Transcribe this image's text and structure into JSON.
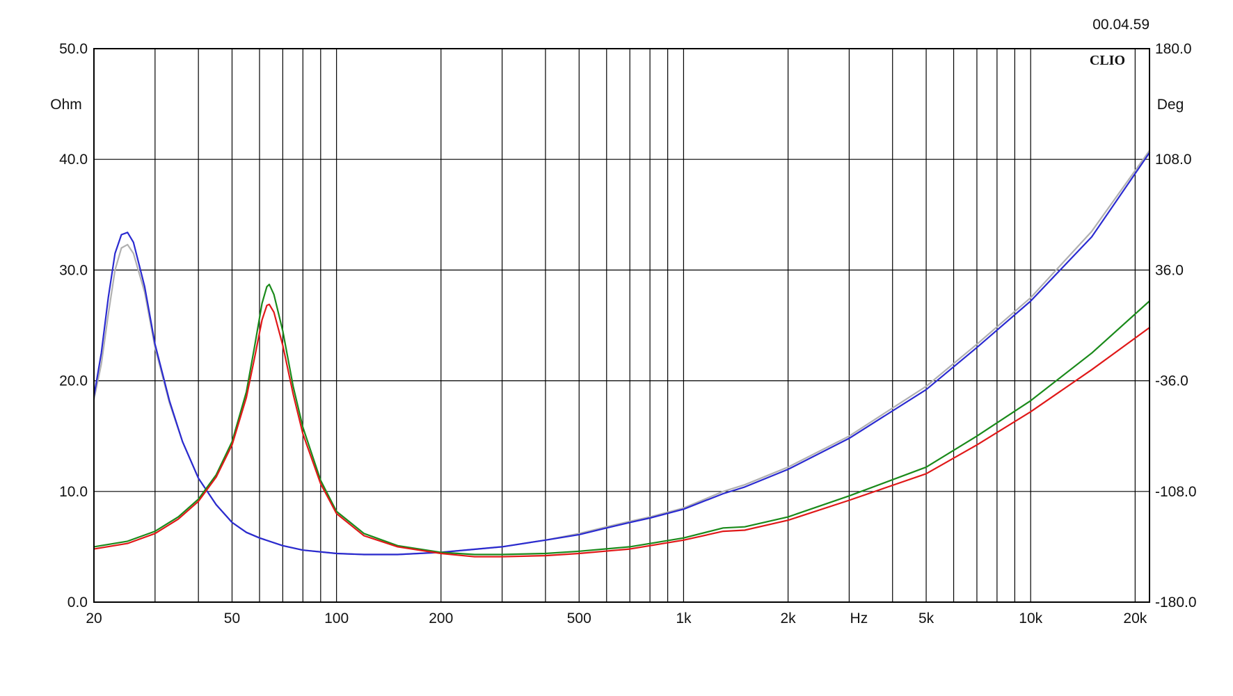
{
  "chart_data": {
    "type": "line",
    "timestamp": "00.04.59",
    "brand": "CLIO",
    "x_axis": {
      "scale": "log",
      "range": [
        20,
        22000
      ],
      "unit_label": "Hz",
      "tick_labels": [
        {
          "value": 20,
          "text": "20"
        },
        {
          "value": 50,
          "text": "50"
        },
        {
          "value": 100,
          "text": "100"
        },
        {
          "value": 200,
          "text": "200"
        },
        {
          "value": 500,
          "text": "500"
        },
        {
          "value": 1000,
          "text": "1k"
        },
        {
          "value": 2000,
          "text": "2k"
        },
        {
          "value": 5000,
          "text": "5k"
        },
        {
          "value": 10000,
          "text": "10k"
        },
        {
          "value": 20000,
          "text": "20k"
        }
      ],
      "unit_position": 3200
    },
    "y_left": {
      "label": "Ohm",
      "range": [
        0,
        50
      ],
      "ticks": [
        "0.0",
        "10.0",
        "20.0",
        "30.0",
        "40.0",
        "50.0"
      ]
    },
    "y_right": {
      "label": "Deg",
      "range": [
        -180,
        180
      ],
      "ticks": [
        "-180.0",
        "-108.0",
        "-36.0",
        "36.0",
        "108.0",
        "180.0"
      ]
    },
    "grid": true,
    "series": [
      {
        "color": "#b0b0b0",
        "points": [
          [
            20,
            18.3
          ],
          [
            21,
            21.5
          ],
          [
            22,
            26
          ],
          [
            23,
            30
          ],
          [
            24,
            32
          ],
          [
            25,
            32.3
          ],
          [
            26,
            31.5
          ],
          [
            28,
            28
          ],
          [
            30,
            23
          ],
          [
            33,
            18
          ],
          [
            36,
            14.5
          ],
          [
            40,
            11.2
          ],
          [
            45,
            8.8
          ],
          [
            50,
            7.2
          ],
          [
            55,
            6.3
          ],
          [
            60,
            5.8
          ],
          [
            70,
            5.1
          ],
          [
            80,
            4.7
          ],
          [
            100,
            4.4
          ],
          [
            120,
            4.3
          ],
          [
            150,
            4.3
          ],
          [
            200,
            4.5
          ],
          [
            300,
            5.0
          ],
          [
            400,
            5.6
          ],
          [
            500,
            6.2
          ],
          [
            600,
            6.8
          ],
          [
            700,
            7.3
          ],
          [
            800,
            7.7
          ],
          [
            1000,
            8.5
          ],
          [
            1300,
            10.0
          ],
          [
            1500,
            10.6
          ],
          [
            2000,
            12.2
          ],
          [
            3000,
            15.0
          ],
          [
            5000,
            19.5
          ],
          [
            7000,
            23.3
          ],
          [
            10000,
            27.5
          ],
          [
            15000,
            33.5
          ],
          [
            22000,
            40.8
          ]
        ]
      },
      {
        "color": "#2a2ad0",
        "points": [
          [
            20,
            18.6
          ],
          [
            21,
            22.5
          ],
          [
            22,
            27.5
          ],
          [
            23,
            31.5
          ],
          [
            24,
            33.2
          ],
          [
            25,
            33.4
          ],
          [
            26,
            32.5
          ],
          [
            28,
            28.5
          ],
          [
            30,
            23.3
          ],
          [
            33,
            18.2
          ],
          [
            36,
            14.5
          ],
          [
            40,
            11.2
          ],
          [
            45,
            8.8
          ],
          [
            50,
            7.2
          ],
          [
            55,
            6.3
          ],
          [
            60,
            5.8
          ],
          [
            70,
            5.1
          ],
          [
            80,
            4.7
          ],
          [
            100,
            4.4
          ],
          [
            120,
            4.3
          ],
          [
            150,
            4.3
          ],
          [
            200,
            4.5
          ],
          [
            300,
            5.0
          ],
          [
            400,
            5.6
          ],
          [
            500,
            6.1
          ],
          [
            600,
            6.7
          ],
          [
            700,
            7.2
          ],
          [
            800,
            7.6
          ],
          [
            1000,
            8.4
          ],
          [
            1300,
            9.8
          ],
          [
            1500,
            10.4
          ],
          [
            2000,
            12.0
          ],
          [
            3000,
            14.8
          ],
          [
            5000,
            19.2
          ],
          [
            7000,
            23.0
          ],
          [
            10000,
            27.2
          ],
          [
            15000,
            33.0
          ],
          [
            22000,
            40.6
          ]
        ]
      },
      {
        "color": "#1a8a1a",
        "points": [
          [
            20,
            5.0
          ],
          [
            25,
            5.5
          ],
          [
            30,
            6.4
          ],
          [
            35,
            7.7
          ],
          [
            40,
            9.3
          ],
          [
            45,
            11.5
          ],
          [
            50,
            14.5
          ],
          [
            55,
            19.0
          ],
          [
            58,
            23.0
          ],
          [
            61,
            27.0
          ],
          [
            63,
            28.5
          ],
          [
            64,
            28.7
          ],
          [
            66,
            27.8
          ],
          [
            70,
            24.5
          ],
          [
            75,
            19.5
          ],
          [
            80,
            15.8
          ],
          [
            90,
            11.0
          ],
          [
            100,
            8.2
          ],
          [
            120,
            6.2
          ],
          [
            150,
            5.1
          ],
          [
            200,
            4.5
          ],
          [
            250,
            4.3
          ],
          [
            300,
            4.3
          ],
          [
            400,
            4.4
          ],
          [
            500,
            4.6
          ],
          [
            700,
            5.0
          ],
          [
            1000,
            5.8
          ],
          [
            1300,
            6.7
          ],
          [
            1500,
            6.8
          ],
          [
            2000,
            7.7
          ],
          [
            3000,
            9.6
          ],
          [
            5000,
            12.2
          ],
          [
            7000,
            15.0
          ],
          [
            10000,
            18.2
          ],
          [
            15000,
            22.5
          ],
          [
            22000,
            27.2
          ]
        ]
      },
      {
        "color": "#e01818",
        "points": [
          [
            20,
            4.8
          ],
          [
            25,
            5.3
          ],
          [
            30,
            6.2
          ],
          [
            35,
            7.5
          ],
          [
            40,
            9.1
          ],
          [
            45,
            11.3
          ],
          [
            50,
            14.2
          ],
          [
            55,
            18.5
          ],
          [
            58,
            22.0
          ],
          [
            61,
            25.5
          ],
          [
            63,
            26.8
          ],
          [
            64,
            26.9
          ],
          [
            66,
            26.2
          ],
          [
            70,
            23.2
          ],
          [
            75,
            18.8
          ],
          [
            80,
            15.2
          ],
          [
            90,
            10.7
          ],
          [
            100,
            8.0
          ],
          [
            120,
            6.0
          ],
          [
            150,
            5.0
          ],
          [
            200,
            4.4
          ],
          [
            250,
            4.1
          ],
          [
            300,
            4.1
          ],
          [
            400,
            4.2
          ],
          [
            500,
            4.4
          ],
          [
            700,
            4.8
          ],
          [
            1000,
            5.6
          ],
          [
            1300,
            6.4
          ],
          [
            1500,
            6.5
          ],
          [
            2000,
            7.4
          ],
          [
            3000,
            9.2
          ],
          [
            5000,
            11.6
          ],
          [
            7000,
            14.2
          ],
          [
            10000,
            17.2
          ],
          [
            15000,
            21.0
          ],
          [
            22000,
            24.8
          ]
        ]
      }
    ]
  }
}
